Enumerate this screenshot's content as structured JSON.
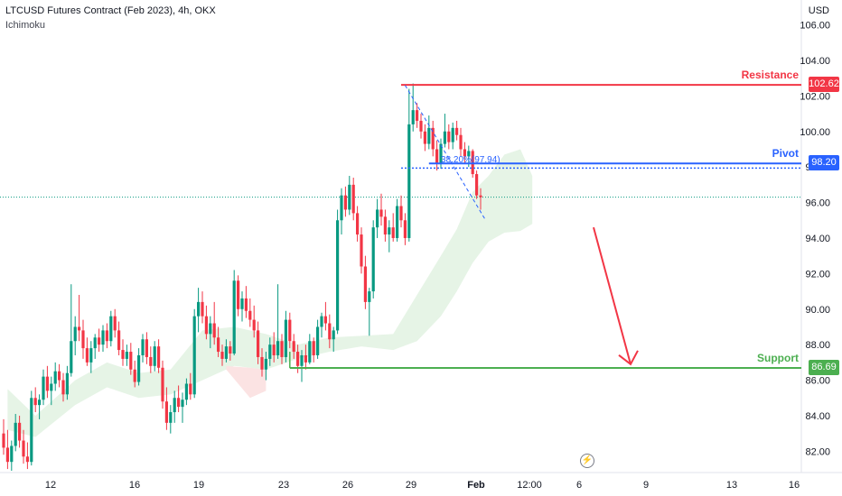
{
  "header": {
    "title": "LTCUSD Futures Contract (Feb 2023), 4h, OKX",
    "indicator": "Ichimoku",
    "currency": "USD"
  },
  "colors": {
    "up": "#089981",
    "down": "#f23645",
    "resistance": "#f23645",
    "pivot": "#2962ff",
    "support": "#4caf50",
    "cloud": "#e6f4e6",
    "cloud_bear": "#fbe3e3",
    "arrow": "#f23645"
  },
  "levels": {
    "resistance": {
      "label": "Resistance",
      "value": "102.62"
    },
    "pivot": {
      "label": "Pivot",
      "value": "98.20"
    },
    "support": {
      "label": "Support",
      "value": "86.69"
    },
    "fib_label": "38.20%(97.94)"
  },
  "chart_data": {
    "type": "candlestick",
    "ylim": [
      80.8,
      107.4
    ],
    "y_ticks": [
      "106.00",
      "104.00",
      "102.00",
      "100.00",
      "98.00",
      "96.00",
      "94.00",
      "92.00",
      "90.00",
      "88.00",
      "86.00",
      "84.00",
      "82.00"
    ],
    "x_ticks": [
      "12",
      "16",
      "19",
      "23",
      "26",
      "29",
      "Feb",
      "12:00",
      "6",
      "9",
      "13",
      "16"
    ],
    "levels": {
      "resistance": 102.62,
      "pivot": 98.2,
      "support": 86.69,
      "fib_38_2": 97.94,
      "current": 96.3
    },
    "ohlc": [
      [
        83.0,
        83.8,
        81.8,
        82.2
      ],
      [
        82.2,
        83.2,
        81.0,
        81.4
      ],
      [
        81.4,
        82.6,
        80.9,
        82.3
      ],
      [
        82.3,
        84.1,
        82.0,
        83.6
      ],
      [
        83.6,
        84.0,
        82.2,
        82.6
      ],
      [
        82.6,
        83.2,
        81.3,
        81.7
      ],
      [
        81.7,
        82.5,
        81.0,
        81.4
      ],
      [
        81.4,
        85.4,
        81.2,
        85.0
      ],
      [
        85.0,
        85.6,
        84.2,
        84.6
      ],
      [
        84.6,
        85.2,
        83.8,
        84.9
      ],
      [
        84.9,
        86.6,
        84.6,
        86.2
      ],
      [
        86.2,
        86.8,
        85.0,
        85.4
      ],
      [
        85.4,
        86.2,
        84.6,
        85.8
      ],
      [
        85.8,
        87.0,
        85.4,
        86.5
      ],
      [
        86.5,
        86.9,
        85.6,
        86.0
      ],
      [
        86.0,
        86.4,
        84.8,
        85.2
      ],
      [
        85.2,
        86.8,
        84.9,
        86.4
      ],
      [
        86.4,
        91.4,
        86.2,
        88.2
      ],
      [
        88.2,
        89.6,
        87.4,
        89.0
      ],
      [
        89.0,
        90.8,
        88.2,
        88.8
      ],
      [
        88.8,
        89.4,
        87.2,
        87.8
      ],
      [
        87.8,
        88.4,
        86.8,
        87.0
      ],
      [
        87.0,
        88.2,
        86.4,
        87.8
      ],
      [
        87.8,
        88.6,
        87.2,
        88.4
      ],
      [
        88.4,
        88.9,
        87.6,
        88.0
      ],
      [
        88.0,
        89.1,
        87.6,
        88.8
      ],
      [
        88.8,
        89.2,
        87.8,
        88.2
      ],
      [
        88.2,
        89.9,
        87.9,
        89.6
      ],
      [
        89.6,
        90.0,
        88.4,
        88.8
      ],
      [
        88.8,
        89.3,
        87.4,
        87.7
      ],
      [
        87.7,
        88.3,
        86.8,
        87.2
      ],
      [
        87.2,
        88.0,
        86.8,
        87.6
      ],
      [
        87.6,
        88.1,
        86.3,
        86.6
      ],
      [
        86.6,
        87.1,
        85.6,
        85.9
      ],
      [
        85.9,
        87.8,
        85.7,
        87.4
      ],
      [
        87.4,
        88.6,
        87.0,
        88.3
      ],
      [
        88.3,
        88.7,
        86.9,
        87.3
      ],
      [
        87.3,
        87.9,
        86.4,
        86.8
      ],
      [
        86.8,
        88.2,
        86.5,
        87.9
      ],
      [
        87.9,
        88.3,
        86.4,
        86.7
      ],
      [
        86.7,
        87.1,
        84.4,
        84.8
      ],
      [
        84.8,
        85.6,
        83.2,
        83.6
      ],
      [
        83.6,
        84.6,
        83.0,
        84.2
      ],
      [
        84.2,
        85.4,
        83.6,
        85.0
      ],
      [
        85.0,
        85.7,
        84.2,
        84.5
      ],
      [
        84.5,
        85.3,
        83.6,
        84.9
      ],
      [
        84.9,
        86.1,
        84.6,
        85.8
      ],
      [
        85.8,
        86.4,
        84.9,
        85.2
      ],
      [
        85.2,
        90.0,
        85.0,
        89.6
      ],
      [
        89.6,
        91.2,
        88.7,
        90.4
      ],
      [
        90.4,
        91.0,
        89.2,
        89.6
      ],
      [
        89.6,
        90.2,
        88.3,
        88.6
      ],
      [
        88.6,
        89.6,
        87.8,
        89.2
      ],
      [
        89.2,
        90.4,
        88.0,
        88.4
      ],
      [
        88.4,
        89.0,
        87.3,
        87.6
      ],
      [
        87.6,
        88.0,
        86.8,
        87.2
      ],
      [
        87.2,
        88.3,
        87.0,
        87.9
      ],
      [
        87.9,
        88.2,
        87.1,
        87.5
      ],
      [
        87.5,
        92.2,
        87.4,
        91.6
      ],
      [
        91.6,
        91.9,
        89.6,
        90.0
      ],
      [
        90.0,
        91.0,
        89.3,
        90.6
      ],
      [
        90.6,
        91.3,
        89.5,
        89.9
      ],
      [
        89.9,
        90.6,
        89.0,
        89.4
      ],
      [
        89.4,
        90.2,
        88.4,
        88.8
      ],
      [
        88.8,
        89.3,
        86.9,
        87.3
      ],
      [
        87.3,
        87.8,
        86.2,
        86.6
      ],
      [
        86.6,
        87.6,
        86.0,
        87.2
      ],
      [
        87.2,
        88.4,
        86.8,
        88.0
      ],
      [
        88.0,
        88.7,
        87.0,
        87.4
      ],
      [
        87.4,
        91.4,
        87.2,
        88.2
      ],
      [
        88.2,
        88.6,
        86.9,
        87.3
      ],
      [
        87.3,
        89.9,
        87.0,
        89.4
      ],
      [
        89.4,
        89.8,
        87.8,
        88.2
      ],
      [
        88.2,
        88.6,
        87.2,
        87.6
      ],
      [
        87.6,
        88.0,
        86.4,
        86.8
      ],
      [
        86.8,
        87.7,
        85.9,
        87.4
      ],
      [
        87.4,
        88.0,
        86.6,
        87.0
      ],
      [
        87.0,
        88.6,
        86.9,
        88.2
      ],
      [
        88.2,
        88.4,
        87.0,
        87.4
      ],
      [
        87.4,
        89.4,
        87.2,
        89.0
      ],
      [
        89.0,
        89.8,
        88.4,
        89.6
      ],
      [
        89.6,
        90.4,
        88.8,
        89.2
      ],
      [
        89.2,
        89.7,
        87.8,
        88.3
      ],
      [
        88.3,
        89.0,
        87.6,
        88.8
      ],
      [
        88.8,
        95.6,
        88.6,
        95.0
      ],
      [
        95.0,
        96.8,
        94.2,
        96.4
      ],
      [
        96.4,
        96.9,
        95.2,
        95.6
      ],
      [
        95.6,
        97.5,
        95.3,
        97.0
      ],
      [
        97.0,
        97.4,
        95.0,
        95.4
      ],
      [
        95.4,
        95.8,
        93.8,
        94.2
      ],
      [
        94.2,
        94.6,
        92.0,
        92.4
      ],
      [
        92.4,
        93.0,
        90.0,
        90.4
      ],
      [
        90.4,
        91.2,
        88.5,
        91.0
      ],
      [
        91.0,
        95.0,
        90.6,
        94.6
      ],
      [
        94.6,
        96.2,
        94.0,
        95.6
      ],
      [
        95.6,
        96.5,
        94.7,
        95.2
      ],
      [
        95.2,
        95.6,
        93.8,
        94.2
      ],
      [
        94.2,
        95.0,
        93.2,
        94.6
      ],
      [
        94.6,
        95.4,
        93.8,
        94.0
      ],
      [
        94.0,
        96.2,
        93.8,
        95.8
      ],
      [
        95.8,
        96.4,
        94.6,
        95.0
      ],
      [
        95.0,
        95.4,
        93.6,
        94.0
      ],
      [
        94.0,
        102.4,
        93.8,
        100.4
      ],
      [
        100.4,
        102.7,
        100.0,
        101.2
      ],
      [
        101.2,
        101.6,
        100.2,
        100.6
      ],
      [
        100.6,
        101.0,
        99.6,
        100.0
      ],
      [
        100.0,
        100.4,
        98.9,
        99.3
      ],
      [
        99.3,
        100.9,
        99.0,
        100.2
      ],
      [
        100.2,
        100.6,
        98.6,
        99.0
      ],
      [
        99.0,
        99.5,
        97.8,
        98.2
      ],
      [
        98.2,
        99.6,
        97.9,
        99.3
      ],
      [
        99.3,
        101.0,
        99.1,
        100.0
      ],
      [
        100.0,
        100.4,
        99.0,
        99.4
      ],
      [
        99.4,
        100.5,
        99.0,
        100.2
      ],
      [
        100.2,
        100.6,
        99.5,
        99.8
      ],
      [
        99.8,
        100.2,
        98.6,
        99.0
      ],
      [
        99.0,
        99.4,
        98.2,
        98.6
      ],
      [
        98.6,
        99.2,
        98.0,
        98.9
      ],
      [
        98.9,
        99.0,
        97.4,
        97.6
      ],
      [
        97.6,
        97.8,
        96.2,
        96.4
      ],
      [
        96.4,
        96.8,
        95.6,
        96.3
      ]
    ],
    "cloud_points": [
      [
        1,
        85.5,
        83.2
      ],
      [
        8,
        84.0,
        82.8
      ],
      [
        18,
        86.0,
        84.6
      ],
      [
        26,
        87.0,
        85.6
      ],
      [
        34,
        86.4,
        85.0
      ],
      [
        42,
        86.6,
        85.2
      ],
      [
        50,
        88.8,
        86.0
      ],
      [
        58,
        89.0,
        86.8
      ],
      [
        66,
        88.6,
        86.6
      ],
      [
        74,
        88.0,
        87.2
      ],
      [
        82,
        88.4,
        87.6
      ],
      [
        90,
        88.5,
        87.9
      ],
      [
        98,
        88.6,
        87.7
      ],
      [
        104,
        90.8,
        88.2
      ],
      [
        110,
        93.0,
        89.6
      ],
      [
        114,
        94.5,
        91.0
      ],
      [
        118,
        96.6,
        92.6
      ],
      [
        122,
        97.5,
        93.8
      ],
      [
        126,
        98.7,
        94.3
      ],
      [
        130,
        99.0,
        94.4
      ],
      [
        133,
        97.5,
        94.8
      ]
    ],
    "cloud_bear_points": [
      [
        56,
        86.8,
        86.6
      ],
      [
        62,
        86.7,
        85.0
      ],
      [
        66,
        86.6,
        85.4
      ]
    ]
  }
}
